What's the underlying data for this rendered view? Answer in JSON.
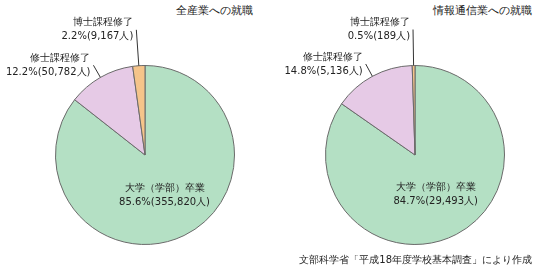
{
  "chart_data": [
    {
      "type": "pie",
      "title": "全産業への就職",
      "categories": [
        "大学（学部）卒業",
        "修士課程修了",
        "博士課程修了"
      ],
      "values": [
        85.6,
        12.2,
        2.2
      ],
      "value_labels": [
        "85.6%(355,820人)",
        "12.2%(50,782人)",
        "2.2%(9,167人)"
      ],
      "colors": [
        "#b4e0c4",
        "#e6cae6",
        "#f5c48a"
      ],
      "data_labels": true
    },
    {
      "type": "pie",
      "title": "情報通信業への就職",
      "categories": [
        "大学（学部）卒業",
        "修士課程修了",
        "博士課程修了"
      ],
      "values": [
        84.7,
        14.8,
        0.5
      ],
      "value_labels": [
        "84.7%(29,493人)",
        "14.8%(5,136人)",
        "0.5%(189人)"
      ],
      "colors": [
        "#b4e0c4",
        "#e6cae6",
        "#f5c48a"
      ],
      "data_labels": true
    }
  ],
  "source": "文部科学省「平成18年度学校基本調査」により作成"
}
